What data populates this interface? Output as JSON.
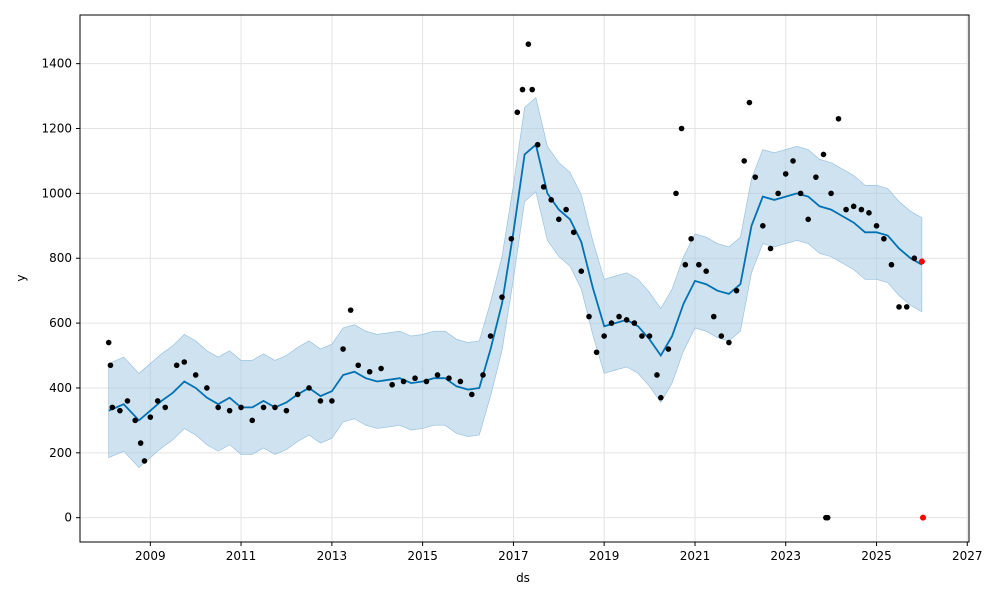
{
  "chart_data": {
    "type": "line",
    "title": "",
    "xlabel": "ds",
    "ylabel": "y",
    "x_ticks": [
      "2009",
      "2011",
      "2013",
      "2015",
      "2017",
      "2019",
      "2021",
      "2023",
      "2025",
      "2027"
    ],
    "y_ticks": [
      "0",
      "200",
      "400",
      "600",
      "800",
      "1000",
      "1200",
      "1400"
    ],
    "xlim": [
      "2007-06-15",
      "2027-01-15"
    ],
    "ylim": [
      -75,
      1550
    ],
    "grid": true,
    "legend": "none",
    "colors": {
      "actual": "#000000",
      "forecast": "#0072B2",
      "interval": "#a6cbe3",
      "holdout": "#ff0000"
    },
    "series": [
      {
        "kind": "forecast-line",
        "points": [
          [
            "2008-02-01",
            330
          ],
          [
            "2008-06-01",
            350
          ],
          [
            "2008-10-01",
            300
          ],
          [
            "2009-01-01",
            330
          ],
          [
            "2009-04-01",
            360
          ],
          [
            "2009-07-01",
            385
          ],
          [
            "2009-10-01",
            420
          ],
          [
            "2010-01-01",
            400
          ],
          [
            "2010-04-01",
            370
          ],
          [
            "2010-07-01",
            350
          ],
          [
            "2010-10-01",
            370
          ],
          [
            "2011-01-01",
            340
          ],
          [
            "2011-04-01",
            340
          ],
          [
            "2011-07-01",
            360
          ],
          [
            "2011-10-01",
            340
          ],
          [
            "2012-01-01",
            355
          ],
          [
            "2012-04-01",
            380
          ],
          [
            "2012-07-01",
            400
          ],
          [
            "2012-10-01",
            375
          ],
          [
            "2013-01-01",
            390
          ],
          [
            "2013-04-01",
            440
          ],
          [
            "2013-07-01",
            450
          ],
          [
            "2013-10-01",
            430
          ],
          [
            "2014-01-01",
            420
          ],
          [
            "2014-04-01",
            425
          ],
          [
            "2014-07-01",
            430
          ],
          [
            "2014-10-01",
            415
          ],
          [
            "2015-01-01",
            420
          ],
          [
            "2015-04-01",
            430
          ],
          [
            "2015-07-01",
            430
          ],
          [
            "2015-10-01",
            405
          ],
          [
            "2016-01-01",
            395
          ],
          [
            "2016-04-01",
            400
          ],
          [
            "2016-07-01",
            520
          ],
          [
            "2016-10-01",
            660
          ],
          [
            "2017-01-01",
            880
          ],
          [
            "2017-04-01",
            1120
          ],
          [
            "2017-07-01",
            1150
          ],
          [
            "2017-10-01",
            1000
          ],
          [
            "2018-01-01",
            950
          ],
          [
            "2018-04-01",
            920
          ],
          [
            "2018-07-01",
            850
          ],
          [
            "2018-10-01",
            710
          ],
          [
            "2019-01-01",
            590
          ],
          [
            "2019-04-01",
            600
          ],
          [
            "2019-07-01",
            610
          ],
          [
            "2019-10-01",
            590
          ],
          [
            "2020-01-01",
            550
          ],
          [
            "2020-04-01",
            500
          ],
          [
            "2020-07-01",
            560
          ],
          [
            "2020-10-01",
            660
          ],
          [
            "2021-01-01",
            730
          ],
          [
            "2021-04-01",
            720
          ],
          [
            "2021-07-01",
            700
          ],
          [
            "2021-10-01",
            690
          ],
          [
            "2022-01-01",
            720
          ],
          [
            "2022-04-01",
            900
          ],
          [
            "2022-07-01",
            990
          ],
          [
            "2022-10-01",
            980
          ],
          [
            "2023-01-01",
            990
          ],
          [
            "2023-04-01",
            1000
          ],
          [
            "2023-07-01",
            990
          ],
          [
            "2023-10-01",
            960
          ],
          [
            "2024-01-01",
            950
          ],
          [
            "2024-04-01",
            930
          ],
          [
            "2024-07-01",
            910
          ],
          [
            "2024-10-01",
            880
          ],
          [
            "2025-01-01",
            880
          ],
          [
            "2025-04-01",
            870
          ],
          [
            "2025-07-01",
            830
          ],
          [
            "2025-10-01",
            800
          ],
          [
            "2026-01-01",
            780
          ]
        ]
      },
      {
        "kind": "actual-points",
        "points": [
          [
            "2008-02-01",
            540
          ],
          [
            "2008-02-15",
            470
          ],
          [
            "2008-03-01",
            340
          ],
          [
            "2008-05-01",
            330
          ],
          [
            "2008-07-01",
            360
          ],
          [
            "2008-09-01",
            300
          ],
          [
            "2008-10-15",
            230
          ],
          [
            "2008-11-15",
            175
          ],
          [
            "2009-01-01",
            310
          ],
          [
            "2009-03-01",
            360
          ],
          [
            "2009-05-01",
            340
          ],
          [
            "2009-08-01",
            470
          ],
          [
            "2009-10-01",
            480
          ],
          [
            "2010-01-01",
            440
          ],
          [
            "2010-04-01",
            400
          ],
          [
            "2010-07-01",
            340
          ],
          [
            "2010-10-01",
            330
          ],
          [
            "2011-01-01",
            340
          ],
          [
            "2011-04-01",
            300
          ],
          [
            "2011-07-01",
            340
          ],
          [
            "2011-10-01",
            340
          ],
          [
            "2012-01-01",
            330
          ],
          [
            "2012-04-01",
            380
          ],
          [
            "2012-07-01",
            400
          ],
          [
            "2012-10-01",
            360
          ],
          [
            "2013-01-01",
            360
          ],
          [
            "2013-04-01",
            520
          ],
          [
            "2013-06-01",
            640
          ],
          [
            "2013-08-01",
            470
          ],
          [
            "2013-11-01",
            450
          ],
          [
            "2014-02-01",
            460
          ],
          [
            "2014-05-01",
            410
          ],
          [
            "2014-08-01",
            420
          ],
          [
            "2014-11-01",
            430
          ],
          [
            "2015-02-01",
            420
          ],
          [
            "2015-05-01",
            440
          ],
          [
            "2015-08-01",
            430
          ],
          [
            "2015-11-01",
            420
          ],
          [
            "2016-02-01",
            380
          ],
          [
            "2016-05-01",
            440
          ],
          [
            "2016-07-01",
            560
          ],
          [
            "2016-10-01",
            680
          ],
          [
            "2016-12-15",
            860
          ],
          [
            "2017-02-01",
            1250
          ],
          [
            "2017-03-15",
            1320
          ],
          [
            "2017-05-01",
            1460
          ],
          [
            "2017-06-01",
            1320
          ],
          [
            "2017-07-15",
            1150
          ],
          [
            "2017-09-01",
            1020
          ],
          [
            "2017-11-01",
            980
          ],
          [
            "2018-01-01",
            920
          ],
          [
            "2018-03-01",
            950
          ],
          [
            "2018-05-01",
            880
          ],
          [
            "2018-07-01",
            760
          ],
          [
            "2018-09-01",
            620
          ],
          [
            "2018-11-01",
            510
          ],
          [
            "2019-01-01",
            560
          ],
          [
            "2019-03-01",
            600
          ],
          [
            "2019-05-01",
            620
          ],
          [
            "2019-07-01",
            610
          ],
          [
            "2019-09-01",
            600
          ],
          [
            "2019-11-01",
            560
          ],
          [
            "2020-01-01",
            560
          ],
          [
            "2020-03-01",
            440
          ],
          [
            "2020-04-01",
            370
          ],
          [
            "2020-06-01",
            520
          ],
          [
            "2020-08-01",
            1000
          ],
          [
            "2020-09-15",
            1200
          ],
          [
            "2020-10-15",
            780
          ],
          [
            "2020-12-01",
            860
          ],
          [
            "2021-02-01",
            780
          ],
          [
            "2021-04-01",
            760
          ],
          [
            "2021-06-01",
            620
          ],
          [
            "2021-08-01",
            560
          ],
          [
            "2021-10-01",
            540
          ],
          [
            "2021-12-01",
            700
          ],
          [
            "2022-02-01",
            1100
          ],
          [
            "2022-03-15",
            1280
          ],
          [
            "2022-05-01",
            1050
          ],
          [
            "2022-07-01",
            900
          ],
          [
            "2022-09-01",
            830
          ],
          [
            "2022-11-01",
            1000
          ],
          [
            "2023-01-01",
            1060
          ],
          [
            "2023-03-01",
            1100
          ],
          [
            "2023-05-01",
            1000
          ],
          [
            "2023-07-01",
            920
          ],
          [
            "2023-09-01",
            1050
          ],
          [
            "2023-11-01",
            1120
          ],
          [
            "2024-01-01",
            1000
          ],
          [
            "2024-03-01",
            1230
          ],
          [
            "2024-05-01",
            950
          ],
          [
            "2024-07-01",
            960
          ],
          [
            "2024-09-01",
            950
          ],
          [
            "2024-11-01",
            940
          ],
          [
            "2025-01-01",
            900
          ],
          [
            "2025-03-01",
            860
          ],
          [
            "2025-05-01",
            780
          ],
          [
            "2025-07-01",
            650
          ],
          [
            "2025-09-01",
            650
          ],
          [
            "2025-11-01",
            800
          ],
          [
            "2023-11-20",
            0
          ],
          [
            "2023-12-05",
            0
          ]
        ]
      },
      {
        "kind": "holdout-points",
        "points": [
          [
            "2026-01-01",
            790
          ],
          [
            "2026-01-10",
            0
          ]
        ]
      }
    ]
  }
}
